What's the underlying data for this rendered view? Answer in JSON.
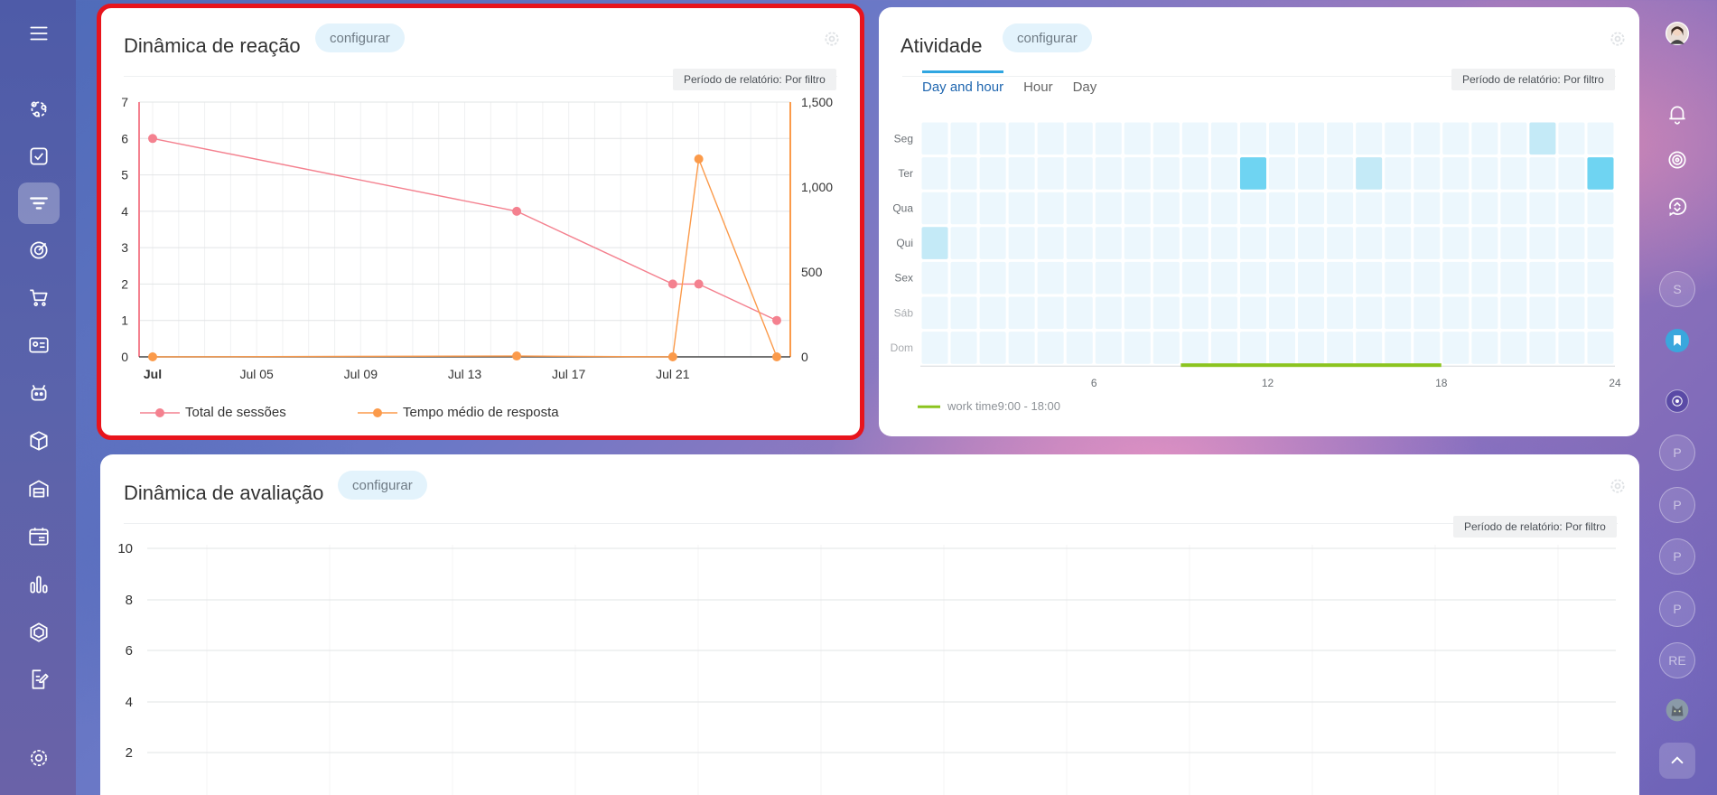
{
  "colors": {
    "pink": "#f4818f",
    "orange": "#fb9a4a",
    "heat_light": "#ecf7fd",
    "heat_mid": "#c4eaf7",
    "heat_high": "#6fd4f2",
    "work_bar": "#8bc41f"
  },
  "sidebar_left": {
    "items": [
      {
        "icon": "menu-icon",
        "active": false
      },
      {
        "icon": "crm-icon",
        "active": false
      },
      {
        "icon": "tasks-icon",
        "active": false
      },
      {
        "icon": "funnel-icon",
        "active": true
      },
      {
        "icon": "target-icon",
        "active": false
      },
      {
        "icon": "cart-icon",
        "active": false
      },
      {
        "icon": "contact-card-icon",
        "active": false
      },
      {
        "icon": "robot-icon",
        "active": false
      },
      {
        "icon": "box-icon",
        "active": false
      },
      {
        "icon": "warehouse-icon",
        "active": false
      },
      {
        "icon": "calendar-list-icon",
        "active": false
      },
      {
        "icon": "bar-chart-icon",
        "active": false
      },
      {
        "icon": "hexagon-icon",
        "active": false
      },
      {
        "icon": "document-edit-icon",
        "active": false
      },
      {
        "icon": "settings-gear-icon",
        "active": false
      }
    ]
  },
  "sidebar_right": {
    "items": [
      {
        "icon": "user-avatar",
        "label": ""
      },
      {
        "icon": "bell-icon",
        "label": ""
      },
      {
        "icon": "copilot-icon",
        "label": ""
      },
      {
        "icon": "chat-sync-icon",
        "label": ""
      },
      {
        "icon": "avatar",
        "label": "S"
      },
      {
        "icon": "bookmark-icon",
        "label": ""
      },
      {
        "icon": "group-icon",
        "label": ""
      },
      {
        "icon": "avatar",
        "label": "P"
      },
      {
        "icon": "avatar",
        "label": "P"
      },
      {
        "icon": "avatar",
        "label": "P"
      },
      {
        "icon": "avatar",
        "label": "P"
      },
      {
        "icon": "avatar",
        "label": "RE"
      },
      {
        "icon": "cat-avatar",
        "label": ""
      },
      {
        "icon": "chevron-up-icon",
        "label": ""
      }
    ]
  },
  "reaction_card": {
    "title": "Dinâmica de reação",
    "config_label": "configurar",
    "period_label": "Período de relatório: Por filtro",
    "chart_data": {
      "type": "line",
      "x_labels": [
        "Jul",
        "Jul 05",
        "Jul 09",
        "Jul 13",
        "Jul 17",
        "Jul 21"
      ],
      "y_left_ticks": [
        "0",
        "1",
        "2",
        "3",
        "4",
        "5",
        "6",
        "7"
      ],
      "y_right_ticks": [
        "0",
        "500",
        "1,000",
        "1,500"
      ],
      "y_left_range": [
        0,
        7
      ],
      "y_right_range": [
        0,
        1500
      ],
      "x_day_range": [
        1,
        25
      ],
      "series": [
        {
          "name": "Total de sessões",
          "axis": "left",
          "points": [
            [
              1,
              6
            ],
            [
              15,
              4
            ],
            [
              21,
              2
            ],
            [
              22,
              2
            ],
            [
              25,
              1
            ]
          ]
        },
        {
          "name": "Tempo médio de resposta",
          "axis": "right",
          "points": [
            [
              1,
              0
            ],
            [
              15,
              5
            ],
            [
              21,
              0
            ],
            [
              22,
              1165
            ],
            [
              25,
              0
            ]
          ]
        }
      ]
    }
  },
  "activity_card": {
    "title": "Atividade",
    "config_label": "configurar",
    "period_label": "Período de relatório: Por filtro",
    "tabs": [
      "Day and hour",
      "Hour",
      "Day"
    ],
    "active_tab": 0,
    "chart_data": {
      "type": "heatmap",
      "rows": [
        "Seg",
        "Ter",
        "Qua",
        "Qui",
        "Sex",
        "Sáb",
        "Dom"
      ],
      "x_ticks": [
        "6",
        "12",
        "18",
        "24"
      ],
      "columns": 24,
      "cells": [
        {
          "row": 0,
          "col": 21,
          "level": 1
        },
        {
          "row": 1,
          "col": 11,
          "level": 2
        },
        {
          "row": 1,
          "col": 15,
          "level": 1
        },
        {
          "row": 1,
          "col": 23,
          "level": 2
        },
        {
          "row": 3,
          "col": 0,
          "level": 1
        }
      ],
      "work_time": [
        9,
        18
      ],
      "legend_label": "work time9:00 - 18:00"
    }
  },
  "rating_card": {
    "title": "Dinâmica de avaliação",
    "config_label": "configurar",
    "period_label": "Período de relatório: Por filtro",
    "chart_data": {
      "type": "line",
      "y_ticks": [
        "2",
        "4",
        "6",
        "8",
        "10"
      ],
      "series": []
    }
  }
}
